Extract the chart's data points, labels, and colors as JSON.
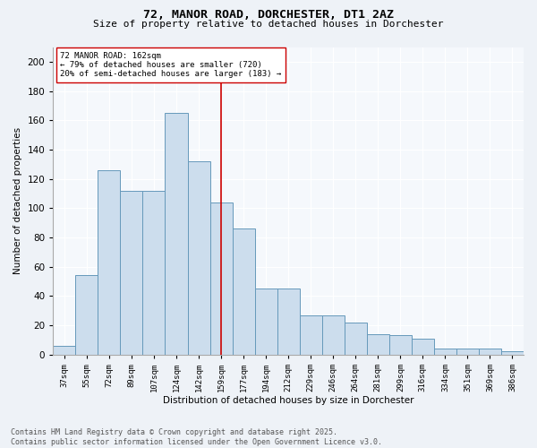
{
  "title1": "72, MANOR ROAD, DORCHESTER, DT1 2AZ",
  "title2": "Size of property relative to detached houses in Dorchester",
  "xlabel": "Distribution of detached houses by size in Dorchester",
  "ylabel": "Number of detached properties",
  "categories": [
    "37sqm",
    "55sqm",
    "72sqm",
    "89sqm",
    "107sqm",
    "124sqm",
    "142sqm",
    "159sqm",
    "177sqm",
    "194sqm",
    "212sqm",
    "229sqm",
    "246sqm",
    "264sqm",
    "281sqm",
    "299sqm",
    "316sqm",
    "334sqm",
    "351sqm",
    "369sqm",
    "386sqm"
  ],
  "values": [
    6,
    54,
    126,
    112,
    112,
    165,
    132,
    104,
    86,
    45,
    45,
    27,
    27,
    22,
    14,
    13,
    11,
    4,
    4,
    4,
    2
  ],
  "bar_color": "#ccdded",
  "bar_edge_color": "#6699bb",
  "vline_index": 7,
  "vline_color": "#cc0000",
  "annotation_text": "72 MANOR ROAD: 162sqm\n← 79% of detached houses are smaller (720)\n20% of semi-detached houses are larger (183) →",
  "annotation_box_color": "#ffffff",
  "annotation_box_edge": "#cc0000",
  "ylim": [
    0,
    210
  ],
  "yticks": [
    0,
    20,
    40,
    60,
    80,
    100,
    120,
    140,
    160,
    180,
    200
  ],
  "footer1": "Contains HM Land Registry data © Crown copyright and database right 2025.",
  "footer2": "Contains public sector information licensed under the Open Government Licence v3.0.",
  "bg_color": "#eef2f7",
  "plot_bg_color": "#f5f8fc"
}
